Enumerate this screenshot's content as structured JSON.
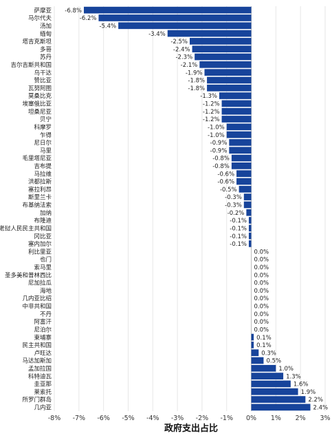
{
  "chart_data": {
    "type": "bar",
    "orientation": "horizontal",
    "title": "",
    "xlabel": "政府支出占比",
    "ylabel": "",
    "xlim": [
      -8,
      3
    ],
    "x_ticks": [
      "-8%",
      "-7%",
      "-6%",
      "-5%",
      "-4%",
      "-3%",
      "-2%",
      "-1%",
      "0%",
      "1%",
      "2%",
      "3%"
    ],
    "grid": true,
    "bar_color": "#17449b",
    "categories": [
      "萨摩亚",
      "马尔代夫",
      "汤加",
      "缅甸",
      "塔吉克斯坦",
      "多哥",
      "苏丹",
      "吉尔吉斯共和国",
      "乌干达",
      "赞比亚",
      "瓦努阿图",
      "莫桑比克",
      "埃塞俄比亚",
      "坦桑尼亚",
      "贝宁",
      "科摩罗",
      "乍得",
      "尼日尔",
      "马里",
      "毛里塔尼亚",
      "吉布提",
      "马拉维",
      "洪都拉斯",
      "塞拉利昂",
      "斯里兰卡",
      "布基纳法索",
      "加纳",
      "布隆迪",
      "老挝人民民主共和国",
      "冈比亚",
      "塞内加尔",
      "利比里亚",
      "也门",
      "索马里",
      "圣多美和普林西比",
      "尼加拉瓜",
      "海地",
      "几内亚比绍",
      "中非共和国",
      "不丹",
      "阿富汗",
      "尼泊尔",
      "柬埔寨",
      "民主共和国",
      "卢旺达",
      "马达加斯加",
      "孟加拉国",
      "科特迪瓦",
      "圭亚那",
      "莱索托",
      "所罗门群岛",
      "几内亚"
    ],
    "values": [
      -6.8,
      -6.2,
      -5.4,
      -3.4,
      -2.5,
      -2.4,
      -2.3,
      -2.1,
      -1.9,
      -1.8,
      -1.8,
      -1.3,
      -1.2,
      -1.2,
      -1.2,
      -1.0,
      -1.0,
      -0.9,
      -0.9,
      -0.8,
      -0.8,
      -0.6,
      -0.6,
      -0.5,
      -0.3,
      -0.3,
      -0.2,
      -0.1,
      -0.1,
      -0.1,
      -0.1,
      0.0,
      0.0,
      0.0,
      0.0,
      0.0,
      0.0,
      0.0,
      0.0,
      0.0,
      0.0,
      0.0,
      0.1,
      0.1,
      0.3,
      0.5,
      1.0,
      1.3,
      1.6,
      1.9,
      2.2,
      2.4
    ],
    "value_labels": [
      "-6.8%",
      "-6.2%",
      "-5.4%",
      "-3.4%",
      "-2.5%",
      "-2.4%",
      "-2.3%",
      "-2.1%",
      "-1.9%",
      "-1.8%",
      "-1.8%",
      "-1.3%",
      "-1.2%",
      "-1.2%",
      "-1.2%",
      "-1.0%",
      "-1.0%",
      "-0.9%",
      "-0.9%",
      "-0.8%",
      "-0.8%",
      "-0.6%",
      "-0.6%",
      "-0.5%",
      "-0.3%",
      "-0.3%",
      "-0.2%",
      "-0.1%",
      "-0.1%",
      "-0.1%",
      "-0.1%",
      "0.0%",
      "0.0%",
      "0.0%",
      "0.0%",
      "0.0%",
      "0.0%",
      "0.0%",
      "0.0%",
      "0.0%",
      "0.0%",
      "0.0%",
      "0.1%",
      "0.1%",
      "0.3%",
      "0.5%",
      "1.0%",
      "1.3%",
      "1.6%",
      "1.9%",
      "2.2%",
      "2.4%"
    ]
  }
}
